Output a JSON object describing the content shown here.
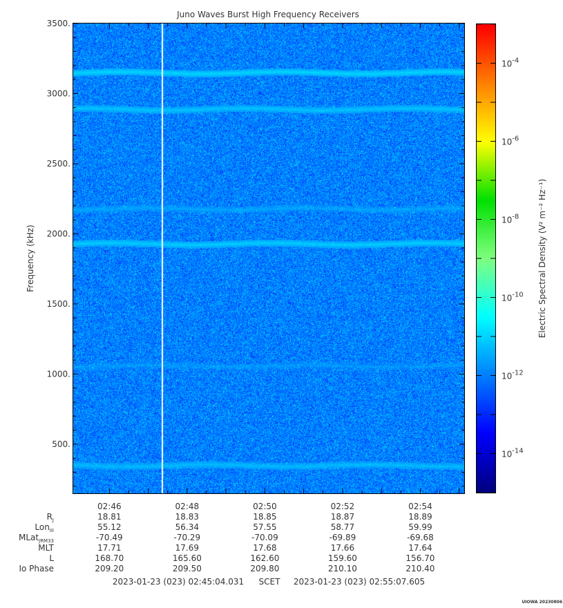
{
  "chart_data": {
    "type": "heatmap",
    "title": "Juno Waves Burst High Frequency Receivers",
    "ylabel": "Frequency (kHz)",
    "colorbar_label": "Electric Spectral Density (V² m⁻² Hz⁻¹)",
    "ylim": [
      150,
      3500
    ],
    "y_ticks": [
      {
        "value": 500,
        "label": "500."
      },
      {
        "value": 1000,
        "label": "1000."
      },
      {
        "value": 1500,
        "label": "1500."
      },
      {
        "value": 2000,
        "label": "2000."
      },
      {
        "value": 2500,
        "label": "2500."
      },
      {
        "value": 3000,
        "label": "3000."
      },
      {
        "value": 3500,
        "label": "3500."
      }
    ],
    "x_range_minutes": [
      45.07,
      55.13
    ],
    "x_ticks": [
      {
        "minute": 46,
        "label": "02:46"
      },
      {
        "minute": 48,
        "label": "02:48"
      },
      {
        "minute": 50,
        "label": "02:50"
      },
      {
        "minute": 52,
        "label": "02:52"
      },
      {
        "minute": 54,
        "label": "02:54"
      }
    ],
    "colorbar": {
      "log_range": [
        -15,
        -3
      ],
      "ticks": [
        {
          "exp": -4,
          "label": "-4"
        },
        {
          "exp": -6,
          "label": "-6"
        },
        {
          "exp": -8,
          "label": "-8"
        },
        {
          "exp": -10,
          "label": "-10"
        },
        {
          "exp": -12,
          "label": "-12"
        },
        {
          "exp": -14,
          "label": "-14"
        }
      ],
      "colors": [
        "#00007f",
        "#0000ff",
        "#0080ff",
        "#00ffff",
        "#80ff80",
        "#00e000",
        "#ffff00",
        "#ff8000",
        "#ff0000"
      ]
    },
    "background_level": -12,
    "emission_lines": [
      {
        "freq_khz": 3150,
        "level": -11.0
      },
      {
        "freq_khz": 2890,
        "level": -11.2
      },
      {
        "freq_khz": 2180,
        "level": -11.6
      },
      {
        "freq_khz": 1930,
        "level": -11.1
      },
      {
        "freq_khz": 1060,
        "level": -11.8
      },
      {
        "freq_khz": 350,
        "level": -11.3
      }
    ],
    "data_gap_minute": 47.35
  },
  "ephemeris": {
    "rows": [
      {
        "label": "R",
        "sub": "J",
        "values": [
          "18.81",
          "18.83",
          "18.85",
          "18.87",
          "18.89"
        ]
      },
      {
        "label": "Lon",
        "sub": "III",
        "values": [
          "55.12",
          "56.34",
          "57.55",
          "58.77",
          "59.99"
        ]
      },
      {
        "label": "MLat",
        "sub": "JRM33",
        "values": [
          "-70.49",
          "-70.29",
          "-70.09",
          "-69.89",
          "-69.68"
        ]
      },
      {
        "label": "MLT",
        "sub": "",
        "values": [
          "17.71",
          "17.69",
          "17.68",
          "17.66",
          "17.64"
        ]
      },
      {
        "label": "L",
        "sub": "",
        "values": [
          "168.70",
          "165.60",
          "162.60",
          "159.60",
          "156.70"
        ]
      },
      {
        "label": "Io Phase",
        "sub": "",
        "values": [
          "209.20",
          "209.50",
          "209.80",
          "210.10",
          "210.40"
        ]
      }
    ]
  },
  "footer": {
    "start": "2023-01-23 (023) 02:45:04.031",
    "scet": "SCET",
    "end": "2023-01-23 (023) 02:55:07.605",
    "stamp": "UIOWA 20230806"
  }
}
